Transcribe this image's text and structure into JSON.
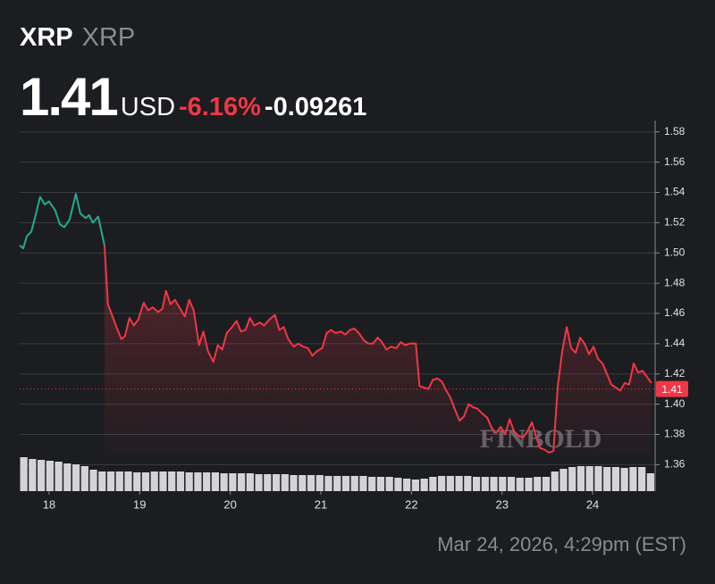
{
  "header": {
    "symbol": "XRP",
    "name": "XRP",
    "price": "1.41",
    "currency": "USD",
    "change_pct": "-6.16%",
    "change": "-0.09261"
  },
  "footer": {
    "timestamp": "Mar 24, 2026, 4:29pm (EST)"
  },
  "chart_data": {
    "type": "line",
    "watermark": "FINBOLD",
    "xlim": [
      17.675,
      24.69
    ],
    "xticks": [
      18,
      19,
      20,
      21,
      22,
      23,
      24
    ],
    "ylim": [
      1.3425,
      1.5875
    ],
    "yticks": [
      1.36,
      1.38,
      {
        "value": 1.4,
        "label": "1.40"
      },
      1.42,
      1.44,
      1.46,
      1.48,
      {
        "value": 1.5,
        "label": "1.50"
      },
      1.52,
      1.54,
      1.56,
      1.58
    ],
    "grid": true,
    "current_price": 1.41,
    "price_label_color": "#f23645",
    "series": [
      {
        "color": "#22ab94",
        "x": [
          17.675,
          17.714,
          17.754,
          17.803,
          17.852,
          17.901,
          17.951,
          18,
          18.069,
          18.118,
          18.167,
          18.227,
          18.296,
          18.345,
          18.404,
          18.443,
          18.483,
          18.542,
          18.611
        ],
        "values": [
          1.505,
          1.503,
          1.511,
          1.514,
          1.525,
          1.537,
          1.532,
          1.534,
          1.528,
          1.519,
          1.517,
          1.522,
          1.539,
          1.526,
          1.523,
          1.525,
          1.52,
          1.524,
          1.505
        ]
      },
      {
        "color": "#f23645",
        "area": true,
        "x": [
          18.611,
          18.65,
          18.749,
          18.798,
          18.837,
          18.887,
          18.936,
          18.985,
          19.044,
          19.094,
          19.143,
          19.202,
          19.251,
          19.291,
          19.34,
          19.389,
          19.448,
          19.498,
          19.547,
          19.596,
          19.655,
          19.704,
          19.754,
          19.813,
          19.862,
          19.911,
          19.961,
          20.02,
          20.069,
          20.118,
          20.167,
          20.217,
          20.266,
          20.325,
          20.374,
          20.433,
          20.493,
          20.542,
          20.591,
          20.64,
          20.7,
          20.749,
          20.808,
          20.857,
          20.906,
          20.956,
          21.015,
          21.064,
          21.113,
          21.163,
          21.222,
          21.271,
          21.32,
          21.369,
          21.419,
          21.478,
          21.527,
          21.576,
          21.626,
          21.675,
          21.724,
          21.773,
          21.833,
          21.882,
          21.931,
          21.98,
          22.049,
          22.089,
          22.138,
          22.187,
          22.236,
          22.286,
          22.335,
          22.384,
          22.433,
          22.483,
          22.532,
          22.581,
          22.631,
          22.68,
          22.729,
          22.778,
          22.837,
          22.887,
          22.936,
          22.985,
          23.034,
          23.084,
          23.133,
          23.182,
          23.232,
          23.281,
          23.33,
          23.369,
          23.419,
          23.468,
          23.517,
          23.567,
          23.616,
          23.665,
          23.714,
          23.764,
          23.813,
          23.862,
          23.911,
          23.961,
          24.01,
          24.059,
          24.108,
          24.158,
          24.207,
          24.256,
          24.305,
          24.355,
          24.404,
          24.453,
          24.502,
          24.552,
          24.601,
          24.65
        ],
        "values": [
          1.505,
          1.466,
          1.45,
          1.443,
          1.445,
          1.457,
          1.452,
          1.456,
          1.467,
          1.462,
          1.464,
          1.461,
          1.463,
          1.475,
          1.466,
          1.469,
          1.463,
          1.458,
          1.469,
          1.462,
          1.439,
          1.448,
          1.435,
          1.428,
          1.439,
          1.436,
          1.447,
          1.451,
          1.455,
          1.448,
          1.449,
          1.457,
          1.452,
          1.454,
          1.452,
          1.456,
          1.459,
          1.449,
          1.451,
          1.443,
          1.438,
          1.44,
          1.438,
          1.437,
          1.432,
          1.435,
          1.437,
          1.447,
          1.449,
          1.447,
          1.448,
          1.446,
          1.449,
          1.45,
          1.447,
          1.442,
          1.44,
          1.44,
          1.444,
          1.441,
          1.436,
          1.438,
          1.437,
          1.441,
          1.439,
          1.44,
          1.44,
          1.412,
          1.411,
          1.41,
          1.416,
          1.417,
          1.415,
          1.409,
          1.404,
          1.396,
          1.389,
          1.392,
          1.4,
          1.398,
          1.397,
          1.394,
          1.391,
          1.384,
          1.381,
          1.385,
          1.38,
          1.39,
          1.382,
          1.379,
          1.378,
          1.382,
          1.388,
          1.38,
          1.371,
          1.37,
          1.368,
          1.369,
          1.412,
          1.435,
          1.451,
          1.437,
          1.434,
          1.444,
          1.44,
          1.433,
          1.438,
          1.43,
          1.427,
          1.42,
          1.413,
          1.411,
          1.409,
          1.414,
          1.413,
          1.427,
          1.421,
          1.422,
          1.418,
          1.414
        ]
      }
    ],
    "volume": {
      "color": "#d4d4d6",
      "lim": [
        0,
        45
      ],
      "values": [
        38,
        36,
        35,
        34,
        33,
        31,
        30,
        28,
        24,
        22,
        22,
        22,
        22,
        21,
        21,
        22,
        22,
        22,
        22,
        21,
        21,
        21,
        21,
        20,
        20,
        20,
        20,
        19,
        19,
        19,
        19,
        18,
        18,
        18,
        18,
        17,
        17,
        17,
        17,
        17,
        16,
        16,
        16,
        15,
        14,
        13,
        14,
        16,
        17,
        17,
        17,
        17,
        16,
        16,
        16,
        16,
        16,
        15,
        15,
        16,
        16,
        22,
        25,
        27,
        28,
        28,
        28,
        27,
        27,
        26,
        27,
        27,
        20
      ]
    }
  }
}
